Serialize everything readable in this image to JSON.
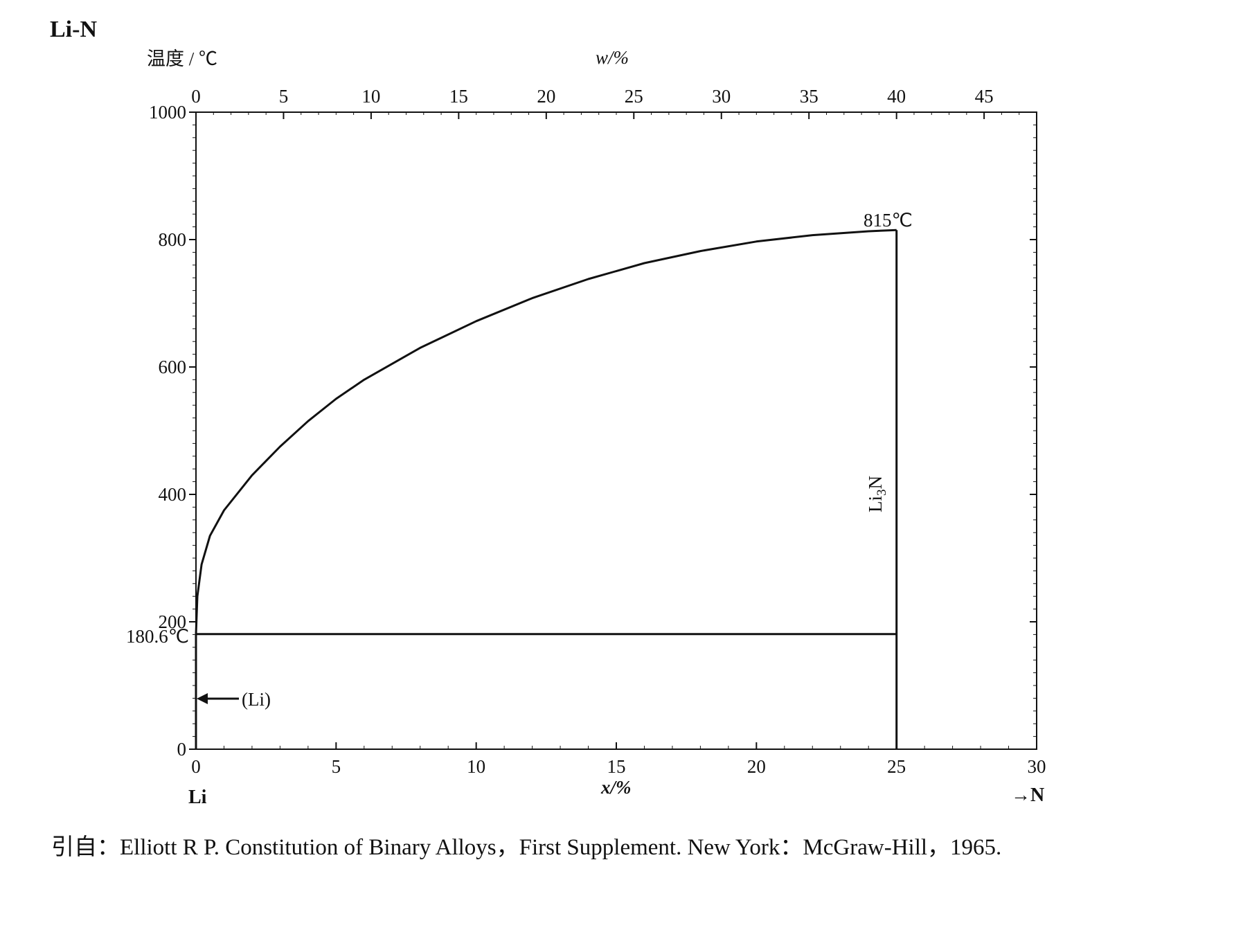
{
  "figure": {
    "title": "Li-N",
    "citation": "引自：Elliott R P.  Constitution of Binary Alloys，First Supplement. New York：McGraw-Hill，1965."
  },
  "chart_data": {
    "type": "line",
    "title": "Li-N",
    "ylabel": "温度 / ℃",
    "xlabel": "x/%",
    "x2label": "w/%",
    "xlim": [
      0,
      30
    ],
    "ylim": [
      0,
      1000
    ],
    "x_ticks": [
      0,
      5,
      10,
      15,
      20,
      25,
      30
    ],
    "x_tick_labels": [
      "0",
      "5",
      "10",
      "15",
      "20",
      "25",
      "30"
    ],
    "y_ticks": [
      0,
      200,
      400,
      600,
      800,
      1000
    ],
    "y_tick_labels": [
      "0",
      "200",
      "400",
      "600",
      "800",
      "1000"
    ],
    "top_ticks": [
      0,
      5,
      10,
      15,
      20,
      25,
      30,
      35,
      40,
      45
    ],
    "top_tick_labels": [
      "0",
      "5",
      "10",
      "15",
      "20",
      "25",
      "30",
      "35",
      "40",
      "45"
    ],
    "left_element": "Li",
    "right_element": "→N",
    "grid": false,
    "series": [
      {
        "x": [
          0,
          0.05,
          0.2,
          0.5,
          1,
          2,
          3,
          4,
          5,
          6,
          8,
          10,
          12,
          14,
          16,
          18,
          20,
          22,
          24,
          25
        ],
        "y": [
          180.6,
          240,
          290,
          335,
          375,
          430,
          475,
          515,
          550,
          580,
          630,
          672,
          708,
          738,
          763,
          782,
          797,
          807,
          813,
          815
        ]
      },
      {
        "x": [
          0,
          25
        ],
        "y": [
          180.6,
          180.6
        ]
      },
      {
        "x": [
          25,
          25
        ],
        "y": [
          0,
          815
        ]
      },
      {
        "x": [
          0,
          0
        ],
        "y": [
          0,
          180.6
        ]
      }
    ],
    "annotations": [
      {
        "text": "815℃",
        "x": 25,
        "y": 815
      },
      {
        "text": "180.6℃",
        "x": 0,
        "y": 180.6
      },
      {
        "text": "Li3N",
        "x": 25,
        "y": 400
      },
      {
        "text": "(Li)",
        "x": 0,
        "y": 80
      }
    ]
  }
}
